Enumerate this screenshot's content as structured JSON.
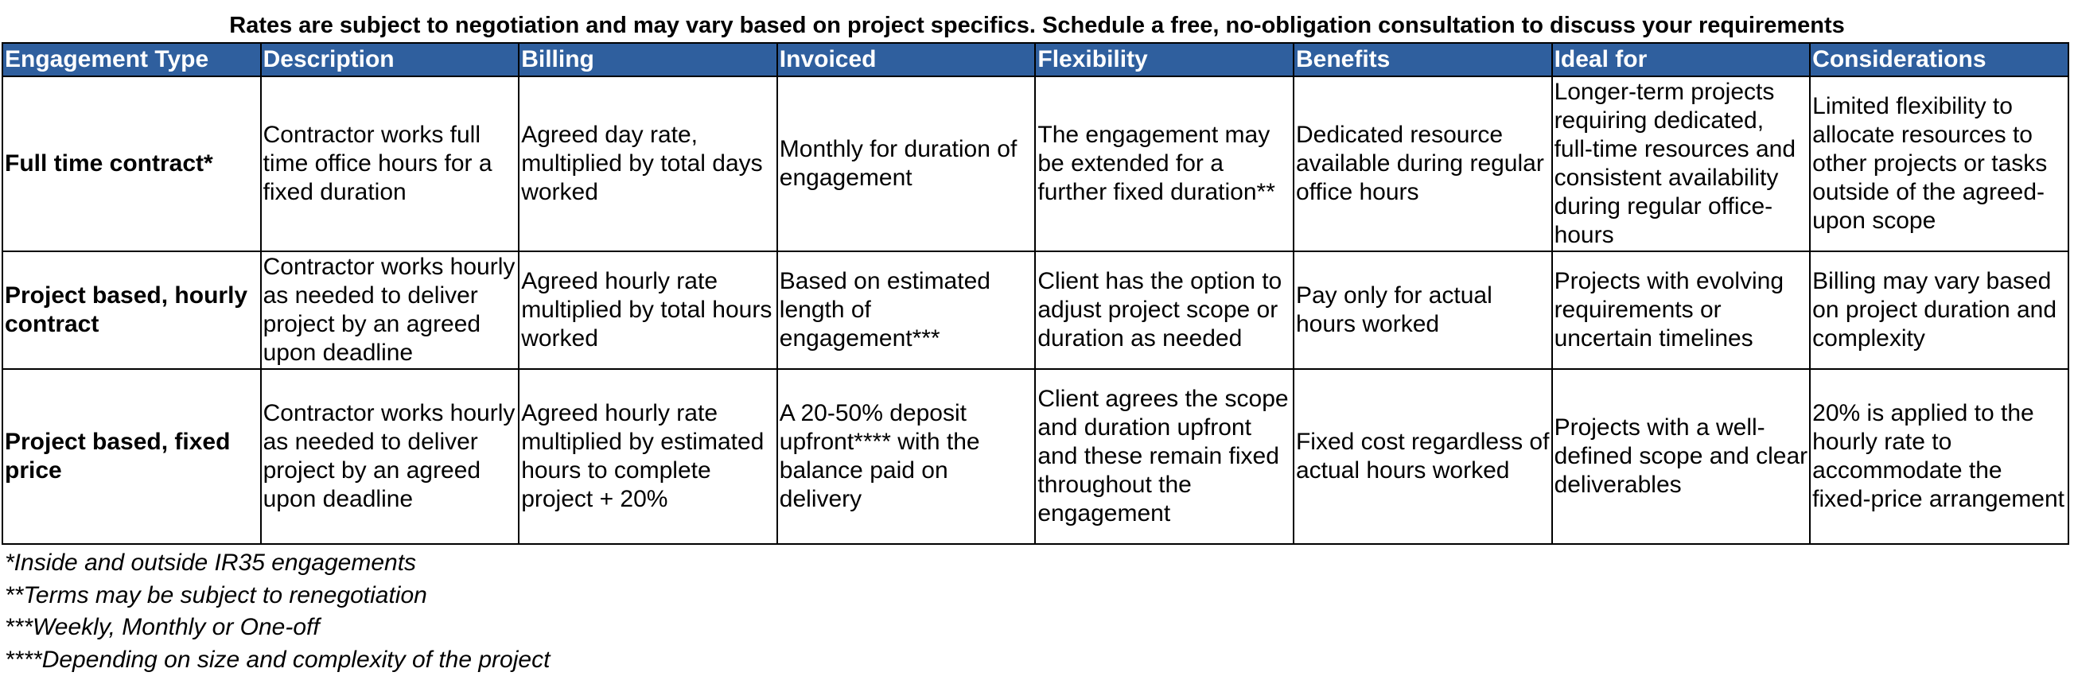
{
  "title": "Rates are subject to negotiation and may vary based on project specifics. Schedule a free, no-obligation consultation to discuss your requirements",
  "table": {
    "headers": [
      "Engagement Type",
      "Description",
      "Billing",
      "Invoiced",
      "Flexibility",
      "Benefits",
      "Ideal for",
      "Considerations"
    ],
    "rows": [
      [
        "Full time contract*",
        "Contractor works full time office hours for a fixed duration",
        "Agreed day rate, multiplied by total days worked",
        "Monthly for duration of engagement",
        "The engagement may be extended for a further fixed duration**",
        "Dedicated resource available during regular office hours",
        "Longer-term projects requiring dedicated, full-time resources and consistent availability during regular office-hours",
        "Limited flexibility to allocate resources to other projects or tasks outside of the agreed-upon scope"
      ],
      [
        "Project based, hourly contract",
        "Contractor works hourly as needed to deliver project by an agreed upon deadline",
        "Agreed hourly rate multiplied by total hours worked",
        "Based on estimated length of engagement***",
        "Client has the option to adjust project scope or duration as needed",
        "Pay only for actual hours worked",
        "Projects with evolving requirements or uncertain timelines",
        "Billing may vary based on project duration and complexity"
      ],
      [
        "Project based, fixed price",
        "Contractor works hourly as needed to deliver project by an agreed upon deadline",
        "Agreed hourly rate multiplied by estimated hours to complete project + 20%",
        "A 20-50% deposit upfront**** with the balance paid on delivery",
        "Client agrees the scope and duration upfront and these remain fixed throughout the engagement",
        "Fixed cost regardless of actual hours worked",
        "Projects with a well-defined scope and clear deliverables",
        "20% is applied to the hourly rate to accommodate the fixed-price arrangement"
      ]
    ]
  },
  "footnotes": [
    "*Inside and outside IR35 engagements",
    "**Terms may be subject to renegotiation",
    "***Weekly, Monthly or One-off",
    "****Depending on size and complexity of the project"
  ],
  "colors": {
    "header_background": "#2f5f9e",
    "header_text": "#ffffff",
    "border": "#000000"
  }
}
